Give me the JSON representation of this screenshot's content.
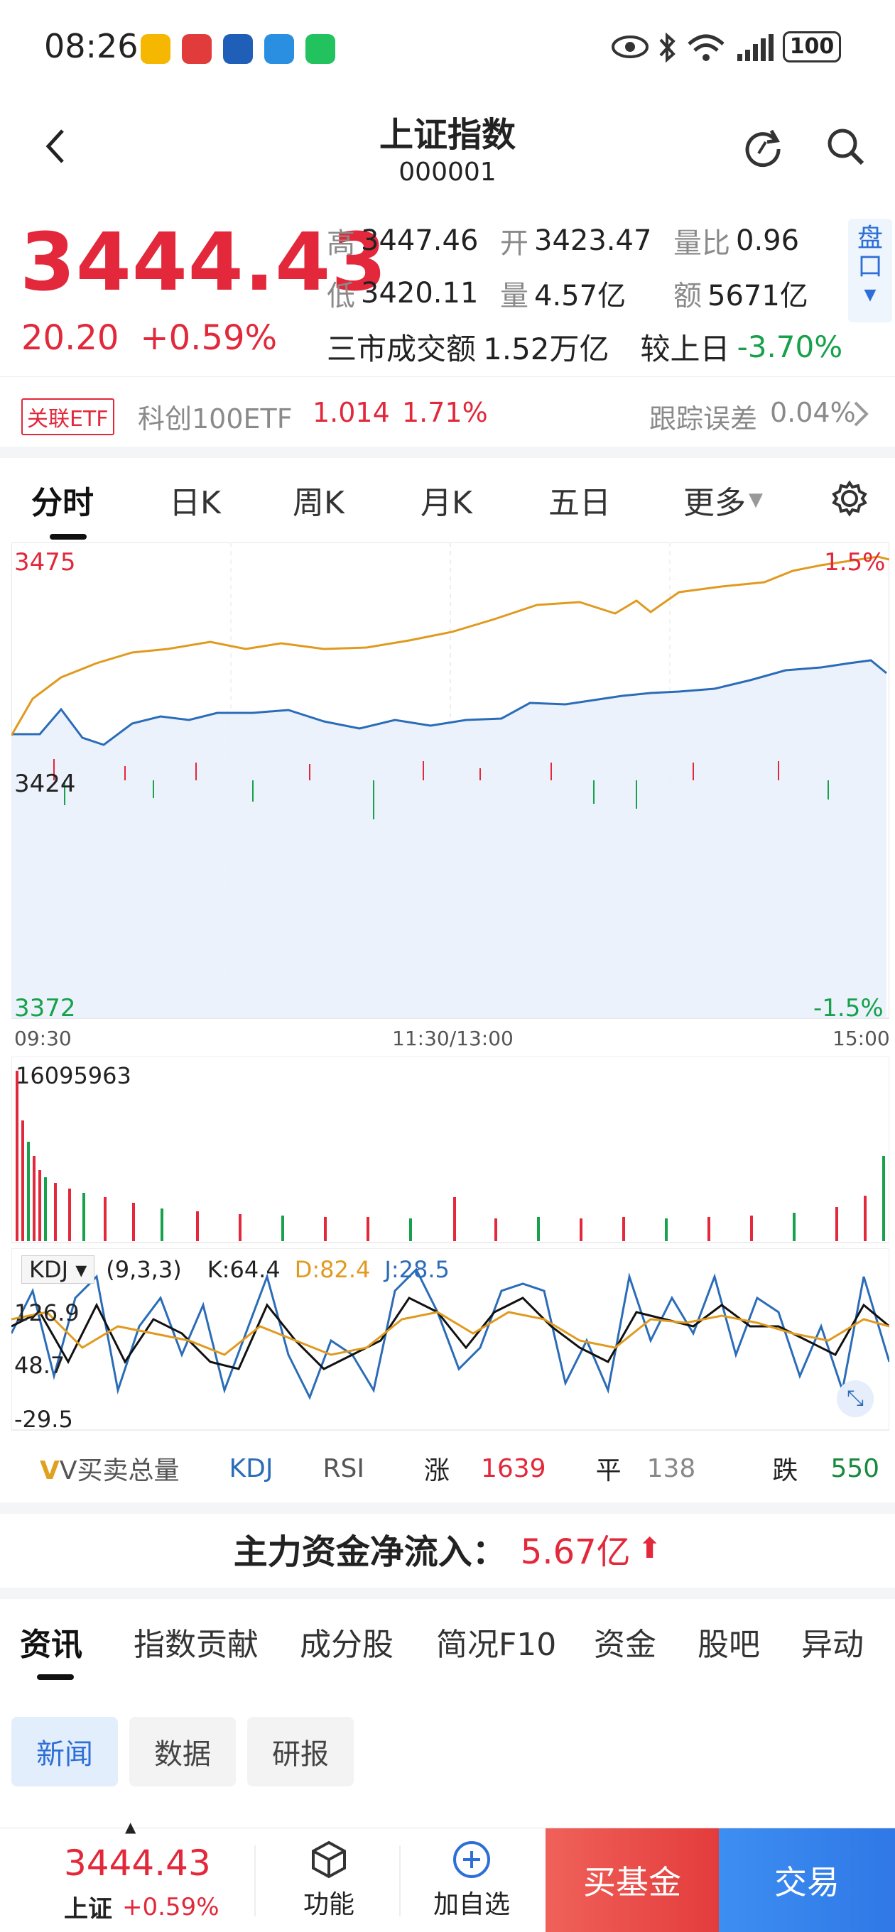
{
  "status_bar": {
    "time": "08:26",
    "battery": "100"
  },
  "header": {
    "title": "上证指数",
    "code": "000001",
    "back_icon": "chevron-left-icon",
    "refresh_icon": "refresh-icon",
    "search_icon": "search-icon"
  },
  "quote": {
    "price": "3444.43",
    "change": "20.20",
    "change_pct": "+0.59%",
    "high_label": "高",
    "high": "3447.46",
    "open_label": "开",
    "open": "3423.47",
    "ratio_label": "量比",
    "ratio": "0.96",
    "low_label": "低",
    "low": "3420.11",
    "vol_label": "量",
    "vol": "4.57亿",
    "amount_label": "额",
    "amount": "5671亿",
    "market_label": "三市成交额",
    "market_value": "1.52万亿",
    "vs_label": "较上日",
    "vs_value": "-3.70%",
    "pankou_top": "盘",
    "pankou_bottom": "口"
  },
  "etf": {
    "badge": "关联ETF",
    "name": "科创100ETF",
    "price": "1.014",
    "pct": "1.71%",
    "track_label": "跟踪误差",
    "track_value": "0.04%"
  },
  "chart_tabs": [
    "分时",
    "日K",
    "周K",
    "月K",
    "五日",
    "更多"
  ],
  "intraday": {
    "y_top": "3475",
    "y_mid": "3424",
    "y_bottom": "3372",
    "pct_top": "1.5%",
    "pct_bottom": "-1.5%",
    "x_start": "09:30",
    "x_mid": "11:30/13:00",
    "x_end": "15:00"
  },
  "volume": {
    "max_label": "16095963"
  },
  "kdj": {
    "name": "KDJ",
    "params": "(9,3,3)",
    "k": "K:64.4",
    "d": "D:82.4",
    "j": "J:28.5",
    "y_top": "126.9",
    "y_mid": "48.7",
    "y_bottom": "-29.5"
  },
  "indicators": {
    "vol_label": "V买卖总量",
    "kdj": "KDJ",
    "rsi": "RSI",
    "up_label": "涨",
    "up": "1639",
    "flat_label": "平",
    "flat": "138",
    "down_label": "跌",
    "down": "550"
  },
  "flow": {
    "label": "主力资金净流入：",
    "value": "5.67亿"
  },
  "section_tabs": [
    "资讯",
    "指数贡献",
    "成分股",
    "简况F10",
    "资金",
    "股吧",
    "异动"
  ],
  "news_chips": [
    "新闻",
    "数据",
    "研报"
  ],
  "bottom_bar": {
    "price": "3444.43",
    "name": "上证",
    "pct": "+0.59%",
    "func_label": "功能",
    "add_label": "加自选",
    "buy_fund": "买基金",
    "trade": "交易"
  },
  "colors": {
    "up": "#e2283a",
    "down": "#17a14a",
    "price_line": "#2b6cb8",
    "avg_line": "#e09a1e",
    "accent": "#2d6fd6"
  }
}
